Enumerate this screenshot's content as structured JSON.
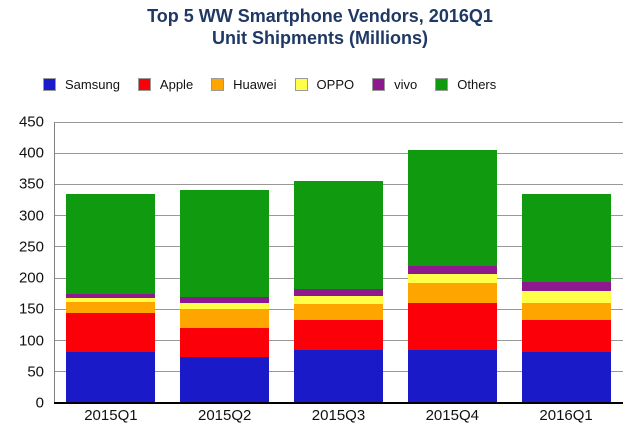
{
  "title": {
    "line1": "Top 5 WW Smartphone Vendors, 2016Q1",
    "line2": "Unit Shipments (Millions)"
  },
  "chart_data": {
    "type": "bar",
    "stacked": true,
    "title": "Top 5 WW Smartphone Vendors, 2016Q1 Unit Shipments (Millions)",
    "categories": [
      "2015Q1",
      "2015Q2",
      "2015Q3",
      "2015Q4",
      "2016Q1"
    ],
    "series": [
      {
        "name": "Samsung",
        "color": "#1A1AC8",
        "values": [
          82.4,
          73.2,
          84.5,
          85.6,
          81.9
        ]
      },
      {
        "name": "Apple",
        "color": "#FB0008",
        "values": [
          61.2,
          47.5,
          48.0,
          74.8,
          51.2
        ]
      },
      {
        "name": "Huawei",
        "color": "#FFA500",
        "values": [
          17.4,
          29.9,
          26.5,
          32.4,
          27.5
        ]
      },
      {
        "name": "OPPO",
        "color": "#FFFF4A",
        "values": [
          7.6,
          9.6,
          11.7,
          14.6,
          18.5
        ]
      },
      {
        "name": "vivo",
        "color": "#8E198E",
        "values": [
          6.4,
          9.0,
          11.3,
          12.1,
          14.3
        ]
      },
      {
        "name": "Others",
        "color": "#0F9A0F",
        "values": [
          159.4,
          172.3,
          173.2,
          185.0,
          141.5
        ]
      }
    ],
    "totals": [
      334.4,
      341.5,
      355.2,
      404.5,
      334.9
    ],
    "xlabel": "",
    "ylabel": "",
    "ylim": [
      0,
      450
    ],
    "y_ticks": [
      0,
      50,
      100,
      150,
      200,
      250,
      300,
      350,
      400,
      450
    ],
    "grid": "horizontal",
    "legend_position": "top",
    "colors": {
      "title_text": "#1F3864",
      "gridline": "#999999",
      "axis_bottom": "#000000",
      "background": "#ffffff"
    }
  }
}
